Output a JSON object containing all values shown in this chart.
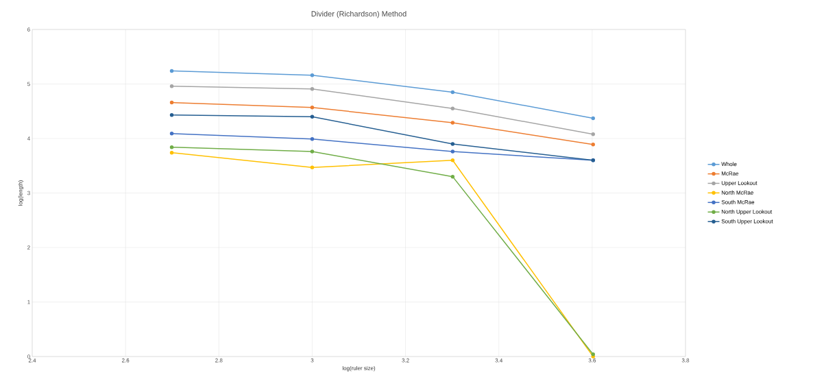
{
  "chart_data": {
    "type": "line",
    "title": "Divider (Richardson) Method",
    "xlabel": "log(ruler size)",
    "ylabel": "log(length)",
    "x": [
      2.699,
      3.0,
      3.301,
      3.602
    ],
    "series": [
      {
        "name": "Whole",
        "color": "#5b9bd5",
        "values": [
          5.24,
          5.16,
          4.85,
          4.37
        ]
      },
      {
        "name": "McRae",
        "color": "#ed7d31",
        "values": [
          4.66,
          4.57,
          4.29,
          3.89
        ]
      },
      {
        "name": "Upper Lookout",
        "color": "#a5a5a5",
        "values": [
          4.96,
          4.91,
          4.55,
          4.08
        ]
      },
      {
        "name": "North McRae",
        "color": "#ffc000",
        "values": [
          3.74,
          3.47,
          3.6,
          0.0
        ]
      },
      {
        "name": "South McRae",
        "color": "#4472c4",
        "values": [
          4.09,
          3.99,
          3.76,
          3.6
        ]
      },
      {
        "name": "North Upper Lookout",
        "color": "#70ad47",
        "values": [
          3.84,
          3.76,
          3.3,
          0.04
        ]
      },
      {
        "name": "South Upper Lookout",
        "color": "#255e91",
        "values": [
          4.43,
          4.4,
          3.9,
          3.6
        ]
      }
    ],
    "xlim": [
      2.4,
      3.8
    ],
    "xticks": [
      2.4,
      2.6,
      2.8,
      3,
      3.2,
      3.4,
      3.6,
      3.8
    ],
    "ylim": [
      0,
      6
    ],
    "yticks": [
      0,
      1,
      2,
      3,
      4,
      5,
      6
    ],
    "grid": true,
    "legend": "right",
    "marker": "circle",
    "line_style": "solid"
  }
}
